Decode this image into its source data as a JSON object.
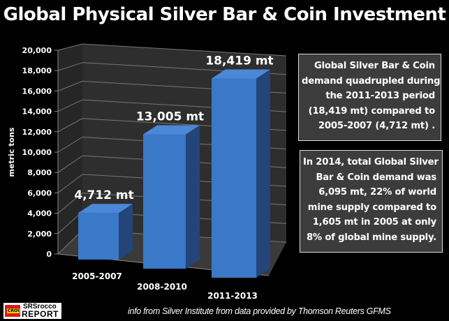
{
  "chart_data": {
    "type": "bar",
    "title": "Global Physical Silver Bar & Coin Investment",
    "categories": [
      "2005-2007",
      "2008-2010",
      "2011-2013"
    ],
    "values": [
      4712,
      13005,
      18419
    ],
    "data_labels": [
      "4,712 mt",
      "13,005 mt",
      "18,419 mt"
    ],
    "ylabel": "metric tons",
    "xlabel": "",
    "ylim": [
      0,
      20000
    ],
    "yticks": [
      "0",
      "2,000",
      "4,000",
      "6,000",
      "8,000",
      "10,000",
      "12,000",
      "14,000",
      "16,000",
      "18,000",
      "20,000"
    ],
    "grid": true,
    "bar_color": "#3a78c8"
  },
  "notes": [
    {
      "lines": [
        "Global Silver Bar & Coin",
        "demand quadrupled during",
        "the 2011-2013 period",
        "(18,419 mt) compared to",
        "2005-2007 (4,712 mt) ."
      ]
    },
    {
      "lines": [
        "In 2014, total Global Silver",
        "Bar & Coin demand was",
        "6,095 mt, 22% of world",
        "mine supply compared to",
        "1,605 mt in 2005 at only",
        "8% of global mine supply."
      ]
    }
  ],
  "footer": "info from Silver Institute from data provided by Thomson Reuters GFMS",
  "logo": {
    "line1": "SRSrocco",
    "line2": "REPORT",
    "badge": "CROI"
  }
}
